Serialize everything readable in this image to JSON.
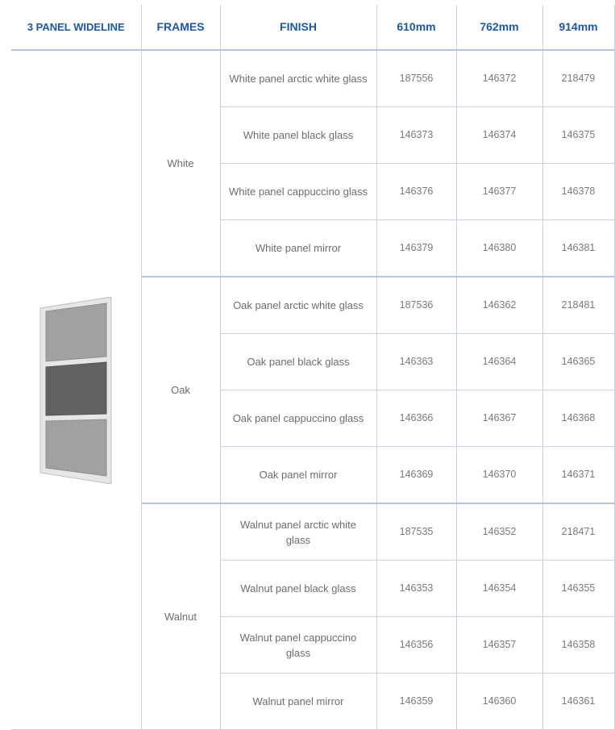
{
  "headers": {
    "product": "3 PANEL WIDELINE",
    "frames": "FRAMES",
    "finish": "FINISH",
    "size_610": "610mm",
    "size_762": "762mm",
    "size_914": "914mm"
  },
  "groups": [
    {
      "frame": "White",
      "rows": [
        {
          "finish": "White panel arctic white glass",
          "c610": "187556",
          "c762": "146372",
          "c914": "218479"
        },
        {
          "finish": "White panel black glass",
          "c610": "146373",
          "c762": "146374",
          "c914": "146375"
        },
        {
          "finish": "White panel cappuccino glass",
          "c610": "146376",
          "c762": "146377",
          "c914": "146378"
        },
        {
          "finish": "White panel mirror",
          "c610": "146379",
          "c762": "146380",
          "c914": "146381"
        }
      ]
    },
    {
      "frame": "Oak",
      "rows": [
        {
          "finish": "Oak panel arctic white glass",
          "c610": "187536",
          "c762": "146362",
          "c914": "218481"
        },
        {
          "finish": "Oak panel black glass",
          "c610": "146363",
          "c762": "146364",
          "c914": "146365"
        },
        {
          "finish": "Oak panel cappuccino glass",
          "c610": "146366",
          "c762": "146367",
          "c914": "146368"
        },
        {
          "finish": "Oak panel mirror",
          "c610": "146369",
          "c762": "146370",
          "c914": "146371"
        }
      ]
    },
    {
      "frame": "Walnut",
      "rows": [
        {
          "finish": "Walnut panel arctic white glass",
          "c610": "187535",
          "c762": "146352",
          "c914": "218471"
        },
        {
          "finish": "Walnut panel black glass",
          "c610": "146353",
          "c762": "146354",
          "c914": "146355"
        },
        {
          "finish": "Walnut panel cappuccino glass",
          "c610": "146356",
          "c762": "146357",
          "c914": "146358"
        },
        {
          "finish": "Walnut panel mirror",
          "c610": "146359",
          "c762": "146360",
          "c914": "146361"
        }
      ]
    }
  ],
  "colors": {
    "header_text": "#1d57a8",
    "body_text": "#6d6d6d",
    "grid_line": "#c9d1e6",
    "door_frame": "#dcdcdc",
    "door_panel_light": "#9c9c9c",
    "door_panel_dark": "#5f5f5f"
  }
}
